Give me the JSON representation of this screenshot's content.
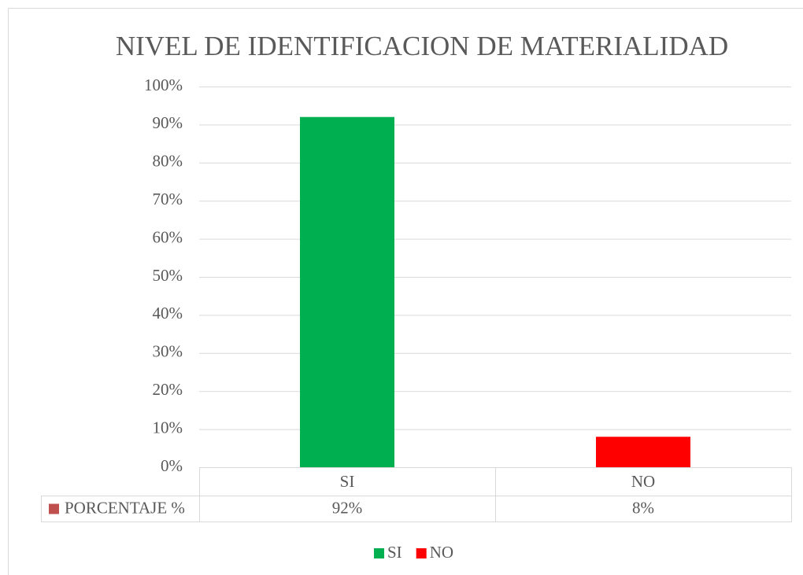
{
  "chart_data": {
    "type": "bar",
    "title": "NIVEL DE IDENTIFICACION DE MATERIALIDAD",
    "categories": [
      "SI",
      "NO"
    ],
    "colors": [
      "#00b050",
      "#ff0000"
    ],
    "series": [
      {
        "name": "PORCENTAJE %",
        "color": "#c0504d",
        "values": [
          92,
          8
        ],
        "value_labels": [
          "92%",
          "8%"
        ]
      }
    ],
    "ylim": [
      0,
      100
    ],
    "yticks": [
      {
        "value": 0,
        "label": "0%"
      },
      {
        "value": 10,
        "label": "10%"
      },
      {
        "value": 20,
        "label": "20%"
      },
      {
        "value": 30,
        "label": "30%"
      },
      {
        "value": 40,
        "label": "40%"
      },
      {
        "value": 50,
        "label": "50%"
      },
      {
        "value": 60,
        "label": "60%"
      },
      {
        "value": 70,
        "label": "70%"
      },
      {
        "value": 80,
        "label": "80%"
      },
      {
        "value": 90,
        "label": "90%"
      },
      {
        "value": 100,
        "label": "100%"
      }
    ],
    "grid": true,
    "legend": "bottom"
  }
}
